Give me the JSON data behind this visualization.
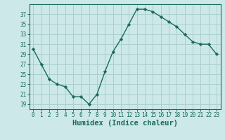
{
  "x": [
    0,
    1,
    2,
    3,
    4,
    5,
    6,
    7,
    8,
    9,
    10,
    11,
    12,
    13,
    14,
    15,
    16,
    17,
    18,
    19,
    20,
    21,
    22,
    23
  ],
  "y": [
    30,
    27,
    24,
    23,
    22.5,
    20.5,
    20.5,
    19,
    21,
    25.5,
    29.5,
    32,
    35,
    38,
    38,
    37.5,
    36.5,
    35.5,
    34.5,
    33,
    31.5,
    31,
    31,
    29
  ],
  "line_color": "#1a6b5a",
  "marker": "D",
  "marker_size": 2.2,
  "bg_color": "#cce8e8",
  "grid_color": "#aacfcf",
  "xlabel": "Humidex (Indice chaleur)",
  "xlim": [
    -0.5,
    23.5
  ],
  "ylim": [
    18,
    39
  ],
  "yticks": [
    19,
    21,
    23,
    25,
    27,
    29,
    31,
    33,
    35,
    37
  ],
  "xticks": [
    0,
    1,
    2,
    3,
    4,
    5,
    6,
    7,
    8,
    9,
    10,
    11,
    12,
    13,
    14,
    15,
    16,
    17,
    18,
    19,
    20,
    21,
    22,
    23
  ],
  "tick_label_size": 5.5,
  "xlabel_size": 7.5,
  "tick_color": "#1a6b5a",
  "axis_color": "#1a6b5a",
  "line_width": 1.0
}
